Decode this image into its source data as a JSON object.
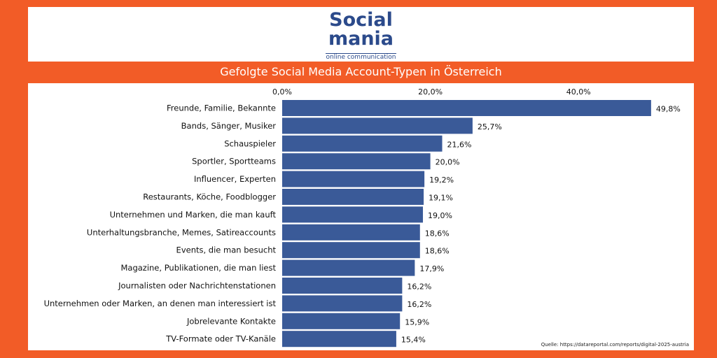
{
  "logo": {
    "line1": "Social",
    "line2": "mania",
    "tagline": "online communication",
    "accent_color": "#f25c27",
    "brand_color": "#2b4a8b"
  },
  "colors": {
    "background": "#f25c27",
    "bar": "#3a5a98",
    "panel": "#ffffff"
  },
  "chart_data": {
    "type": "bar",
    "orientation": "horizontal",
    "title": "Gefolgte Social Media Account-Typen in Österreich",
    "categories": [
      "Freunde, Familie, Bekannte",
      "Bands, Sänger, Musiker",
      "Schauspieler",
      "Sportler, Sportteams",
      "Influencer, Experten",
      "Restaurants, Köche, Foodblogger",
      "Unternehmen und Marken, die man kauft",
      "Unterhaltungsbranche, Memes, Satireaccounts",
      "Events, die man besucht",
      "Magazine, Publikationen, die man liest",
      "Journalisten oder Nachrichtenstationen",
      "Unternehmen oder Marken, an denen man interessiert ist",
      "Jobrelevante Kontakte",
      "TV-Formate oder TV-Kanäle"
    ],
    "values": [
      49.8,
      25.7,
      21.6,
      20.0,
      19.2,
      19.1,
      19.0,
      18.6,
      18.6,
      17.9,
      16.2,
      16.2,
      15.9,
      15.4
    ],
    "value_labels": [
      "49,8%",
      "25,7%",
      "21,6%",
      "20,0%",
      "19,2%",
      "19,1%",
      "19,0%",
      "18,6%",
      "18,6%",
      "17,9%",
      "16,2%",
      "16,2%",
      "15,9%",
      "15,4%"
    ],
    "x_ticks": [
      0,
      20,
      40
    ],
    "x_tick_labels": [
      "0,0%",
      "20,0%",
      "40,0%"
    ],
    "x_axis_position": "top",
    "xlim": [
      0,
      50
    ],
    "grid": false,
    "legend": "none",
    "source": "Quelle: https://datareportal.com/reports/digital-2025-austria"
  }
}
